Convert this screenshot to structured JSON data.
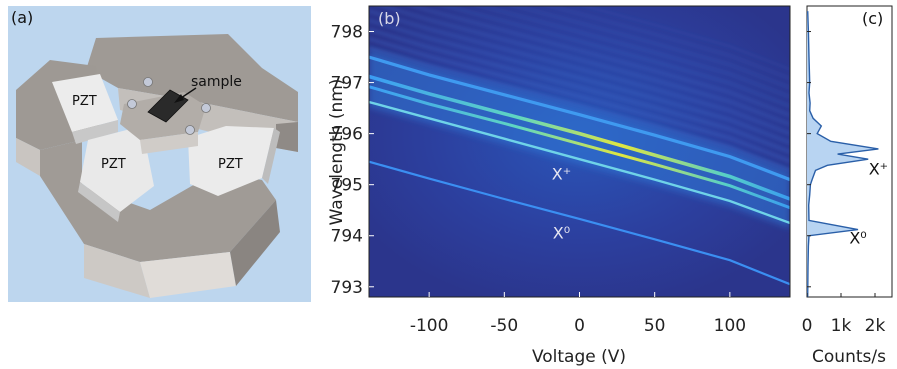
{
  "panels": {
    "a": {
      "label": "(a)",
      "labels": {
        "pzt_left": "PZT",
        "pzt_center": "PZT",
        "pzt_right": "PZT",
        "sample": "sample"
      }
    }
  },
  "chart_data": [
    {
      "type": "heatmap",
      "panel_label": "(b)",
      "title": "",
      "xlabel": "Voltage (V)",
      "ylabel": "Wavelength (nm)",
      "xlim": [
        -140,
        140
      ],
      "ylim": [
        792.8,
        798.5
      ],
      "xticks": [
        -100,
        -50,
        0,
        50,
        100
      ],
      "yticks": [
        793,
        794,
        795,
        796,
        797,
        798
      ],
      "xticklabels": [
        "-100",
        "-50",
        "0",
        "50",
        "100"
      ],
      "yticklabels": [
        "793",
        "794",
        "795",
        "796",
        "797",
        "798"
      ],
      "series": [
        {
          "name": "X⁰",
          "x": [
            -140,
            -100,
            -50,
            0,
            50,
            100,
            140
          ],
          "y": [
            795.45,
            795.12,
            794.72,
            794.33,
            793.93,
            793.52,
            793.05
          ]
        },
        {
          "name": "X⁺",
          "x": [
            -140,
            -100,
            -50,
            0,
            50,
            100,
            140
          ],
          "y": [
            796.62,
            796.3,
            795.9,
            795.5,
            795.1,
            794.68,
            794.25
          ]
        },
        {
          "x": [
            -140,
            -100,
            -50,
            0,
            50,
            100,
            140
          ],
          "y": [
            796.92,
            796.58,
            796.2,
            795.8,
            795.4,
            794.98,
            794.55
          ]
        },
        {
          "x": [
            -140,
            -100,
            -50,
            0,
            50,
            100,
            140
          ],
          "y": [
            797.12,
            796.78,
            796.39,
            796.0,
            795.58,
            795.16,
            794.72
          ]
        },
        {
          "x": [
            -140,
            -100,
            -50,
            0,
            50,
            100,
            140
          ],
          "y": [
            797.5,
            797.15,
            796.76,
            796.37,
            795.97,
            795.55,
            795.1
          ]
        }
      ],
      "colors": {
        "background": "#2c3a92",
        "line_low": "#3a8ff0",
        "line_high": "#d4e63a"
      },
      "annotations": [
        {
          "text": "X⁺",
          "x": -12,
          "y": 795.1
        },
        {
          "text": "X⁰",
          "x": -12,
          "y": 793.95
        }
      ]
    },
    {
      "type": "area",
      "panel_label": "(c)",
      "title": "",
      "xlabel": "Counts/s",
      "ylabel": "",
      "xlim": [
        0,
        2500
      ],
      "ylim": [
        792.8,
        798.5
      ],
      "xticks": [
        0,
        1000,
        2000
      ],
      "xticklabels": [
        "0",
        "1k",
        "2k"
      ],
      "series": [
        {
          "x": [
            20,
            40,
            60,
            80,
            60,
            90,
            80,
            180,
            420,
            300,
            700,
            2100,
            900,
            1800,
            600,
            250,
            150,
            100,
            80,
            50,
            60,
            1500,
            60,
            40,
            30,
            20
          ],
          "y": [
            798.4,
            798.0,
            797.5,
            797.0,
            796.8,
            796.6,
            796.45,
            796.3,
            796.15,
            796.0,
            795.85,
            795.7,
            795.6,
            795.5,
            795.38,
            795.28,
            795.1,
            795.0,
            794.8,
            794.6,
            794.3,
            794.12,
            794.0,
            793.8,
            793.4,
            792.8
          ]
        }
      ],
      "colors": {
        "fill": "#b8d4f2",
        "line": "#2a5fa8"
      },
      "annotations": [
        {
          "text": "X⁺",
          "x": 2100,
          "y": 795.2
        },
        {
          "text": "X⁰",
          "x": 1500,
          "y": 793.85
        }
      ]
    }
  ]
}
